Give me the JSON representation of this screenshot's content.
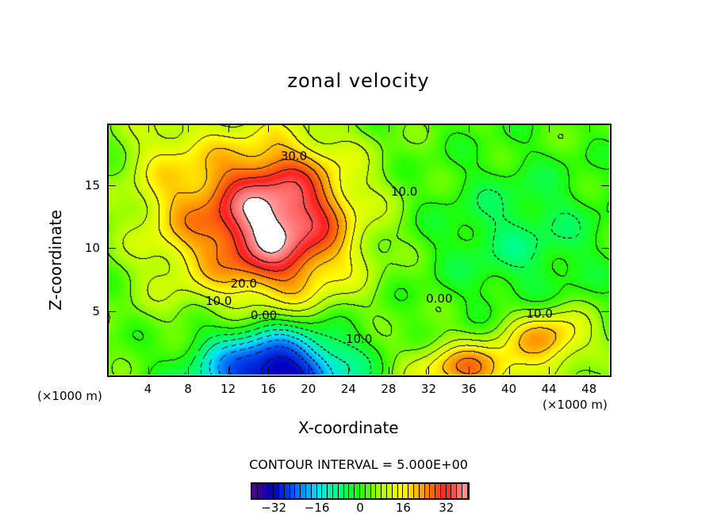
{
  "chart_data": {
    "type": "heatmap",
    "title": "zonal velocity",
    "xlabel": "X-coordinate",
    "ylabel": "Z-coordinate",
    "x_unit_label": "(×1000 m)",
    "y_unit_label": "(×1000 m)",
    "xlim": [
      0,
      50
    ],
    "ylim": [
      0,
      19.8
    ],
    "xticks": [
      4,
      8,
      12,
      16,
      20,
      24,
      28,
      32,
      36,
      40,
      44,
      48
    ],
    "yticks": [
      5,
      10,
      15
    ],
    "contour_interval": 5,
    "contour_interval_label": "CONTOUR INTERVAL = 5.000E+00",
    "contour_labels": [
      {
        "text": "30.0",
        "x": 18.5,
        "y": 17.3
      },
      {
        "text": "20.0",
        "x": 13.5,
        "y": 7.2
      },
      {
        "text": "10.0",
        "x": 11.0,
        "y": 5.8
      },
      {
        "text": "0.00",
        "x": 15.5,
        "y": 4.7
      },
      {
        "text": "10.0",
        "x": 25.0,
        "y": 2.8
      },
      {
        "text": "10.0",
        "x": 29.5,
        "y": 14.5
      },
      {
        "text": "0.00",
        "x": 33.0,
        "y": 6.0
      },
      {
        "text": "10.0",
        "x": 43.0,
        "y": 4.8
      }
    ],
    "field_features": [
      {
        "kind": "max",
        "x": 16.5,
        "y": 12.2,
        "value": 40,
        "sx": 5.5,
        "sy": 4.5
      },
      {
        "kind": "min",
        "x": 16.5,
        "y": 0.3,
        "value": -38,
        "sx": 5,
        "sy": 2.5
      },
      {
        "kind": "min",
        "x": 41,
        "y": 11,
        "value": -8,
        "sx": 6,
        "sy": 4
      },
      {
        "kind": "max",
        "x": 44,
        "y": 3,
        "value": 20,
        "sx": 3,
        "sy": 1.6
      },
      {
        "kind": "max",
        "x": 36,
        "y": 0.5,
        "value": 22,
        "sx": 4,
        "sy": 1.5
      },
      {
        "kind": "max",
        "x": 6,
        "y": 15,
        "value": 10,
        "sx": 3.5,
        "sy": 6
      }
    ],
    "colorbar": {
      "range": [
        -40,
        40
      ],
      "ticks": [
        -32,
        -16,
        0,
        16,
        32
      ],
      "tick_labels": [
        "−32",
        "−16",
        "0",
        "16",
        "32"
      ],
      "colors": [
        "#5a0090",
        "#0000c0",
        "#0060ff",
        "#00e0ff",
        "#00ff80",
        "#20ff00",
        "#b0ff00",
        "#ffff00",
        "#ff9000",
        "#ff2020",
        "#ffa0a0"
      ]
    }
  }
}
